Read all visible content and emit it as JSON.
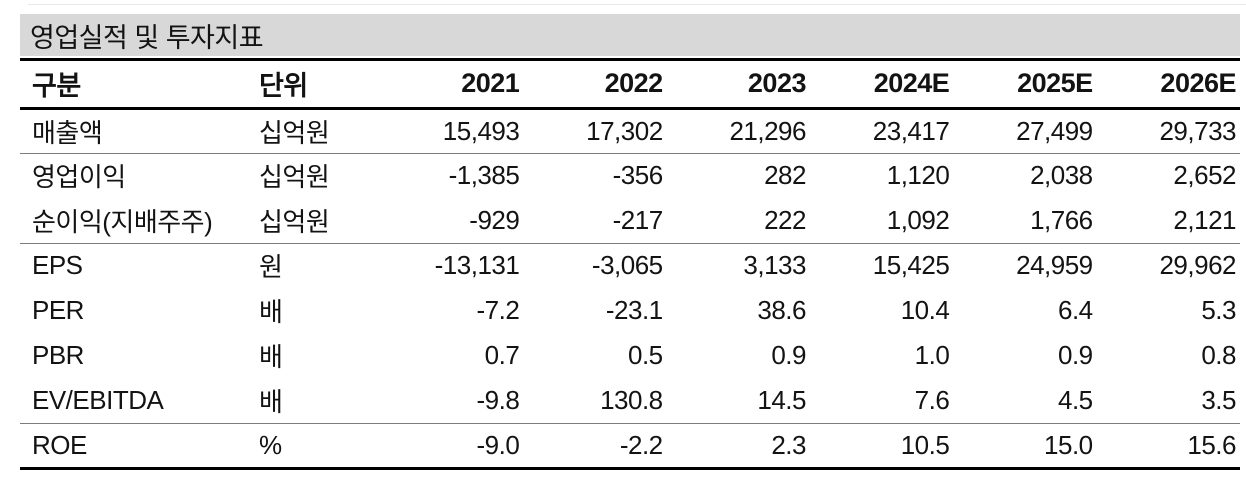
{
  "title": "영업실적 및 투자지표",
  "colors": {
    "title_bar_bg": "#d8d8d8",
    "rule_thick": "#000000",
    "rule_thin": "#7c7c7c",
    "text": "#131313"
  },
  "table": {
    "columns": [
      "구분",
      "단위",
      "2021",
      "2022",
      "2023",
      "2024E",
      "2025E",
      "2026E"
    ],
    "rows": [
      {
        "cells": [
          "매출액",
          "십억원",
          "15,493",
          "17,302",
          "21,296",
          "23,417",
          "27,499",
          "29,733"
        ]
      },
      {
        "cells": [
          "영업이익",
          "십억원",
          "-1,385",
          "-356",
          "282",
          "1,120",
          "2,038",
          "2,652"
        ]
      },
      {
        "cells": [
          "순이익(지배주주)",
          "십억원",
          "-929",
          "-217",
          "222",
          "1,092",
          "1,766",
          "2,121"
        ]
      },
      {
        "cells": [
          "EPS",
          "원",
          "-13,131",
          "-3,065",
          "3,133",
          "15,425",
          "24,959",
          "29,962"
        ]
      },
      {
        "cells": [
          "PER",
          "배",
          "-7.2",
          "-23.1",
          "38.6",
          "10.4",
          "6.4",
          "5.3"
        ]
      },
      {
        "cells": [
          "PBR",
          "배",
          "0.7",
          "0.5",
          "0.9",
          "1.0",
          "0.9",
          "0.8"
        ]
      },
      {
        "cells": [
          "EV/EBITDA",
          "배",
          "-9.8",
          "130.8",
          "14.5",
          "7.6",
          "4.5",
          "3.5"
        ]
      },
      {
        "cells": [
          "ROE",
          "%",
          "-9.0",
          "-2.2",
          "2.3",
          "10.5",
          "15.0",
          "15.6"
        ]
      }
    ]
  }
}
